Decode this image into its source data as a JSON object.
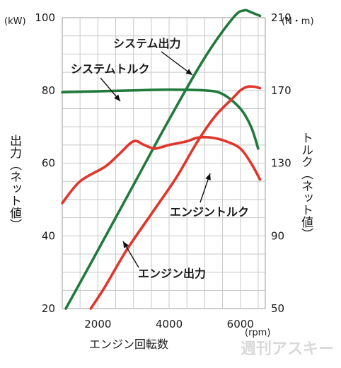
{
  "chart_data": {
    "type": "line",
    "xlabel": "エンジン回転数",
    "xunit": "(rpm)",
    "ylabel_left": "出力（ネット値）",
    "yunit_left": "(kW)",
    "ylabel_right": "トルク（ネット値）",
    "yunit_right": "(N・m)",
    "xlim": [
      1000,
      6700
    ],
    "ylim_left": [
      20,
      100
    ],
    "ylim_right": [
      50,
      210
    ],
    "xticks": [
      "2000",
      "4000",
      "6000"
    ],
    "yticks_left": [
      "20",
      "40",
      "60",
      "80",
      "100"
    ],
    "yticks_right": [
      "50",
      "90",
      "130",
      "170",
      "210"
    ],
    "grid": true,
    "series": [
      {
        "name": "システム出力",
        "axis": "left",
        "color": "#1f7a3c",
        "points": [
          [
            1100,
            20
          ],
          [
            2000,
            36
          ],
          [
            3000,
            54
          ],
          [
            4000,
            72
          ],
          [
            5000,
            89
          ],
          [
            5800,
            100
          ],
          [
            6100,
            102
          ],
          [
            6300,
            101.5
          ],
          [
            6550,
            100.5
          ]
        ]
      },
      {
        "name": "システムトルク",
        "axis": "right",
        "color": "#1f7a3c",
        "points": [
          [
            1000,
            169
          ],
          [
            2000,
            169.5
          ],
          [
            3000,
            170
          ],
          [
            4000,
            170.4
          ],
          [
            5000,
            170
          ],
          [
            5500,
            168
          ],
          [
            6000,
            160
          ],
          [
            6300,
            150
          ],
          [
            6500,
            138
          ]
        ]
      },
      {
        "name": "エンジントルク",
        "axis": "right",
        "color": "#e0352b",
        "points": [
          [
            1000,
            108
          ],
          [
            1500,
            120
          ],
          [
            2200,
            128
          ],
          [
            2600,
            135
          ],
          [
            3000,
            142
          ],
          [
            3300,
            140
          ],
          [
            3600,
            138
          ],
          [
            4000,
            140
          ],
          [
            4500,
            142
          ],
          [
            4800,
            144
          ],
          [
            5200,
            144
          ],
          [
            5600,
            142
          ],
          [
            6000,
            138
          ],
          [
            6300,
            130
          ],
          [
            6550,
            121
          ]
        ]
      },
      {
        "name": "エンジン出力",
        "axis": "left",
        "color": "#e0352b",
        "points": [
          [
            1800,
            20
          ],
          [
            2200,
            26
          ],
          [
            2800,
            36
          ],
          [
            3500,
            46
          ],
          [
            4200,
            56
          ],
          [
            4800,
            66
          ],
          [
            5300,
            73
          ],
          [
            5800,
            78
          ],
          [
            6000,
            80
          ],
          [
            6200,
            81
          ],
          [
            6400,
            81
          ],
          [
            6550,
            80.6
          ]
        ]
      }
    ],
    "annotations": [
      {
        "text": "システム出力"
      },
      {
        "text": "システムトルク"
      },
      {
        "text": "エンジントルク"
      },
      {
        "text": "エンジン出力"
      }
    ]
  },
  "watermark": "週刊アスキー"
}
